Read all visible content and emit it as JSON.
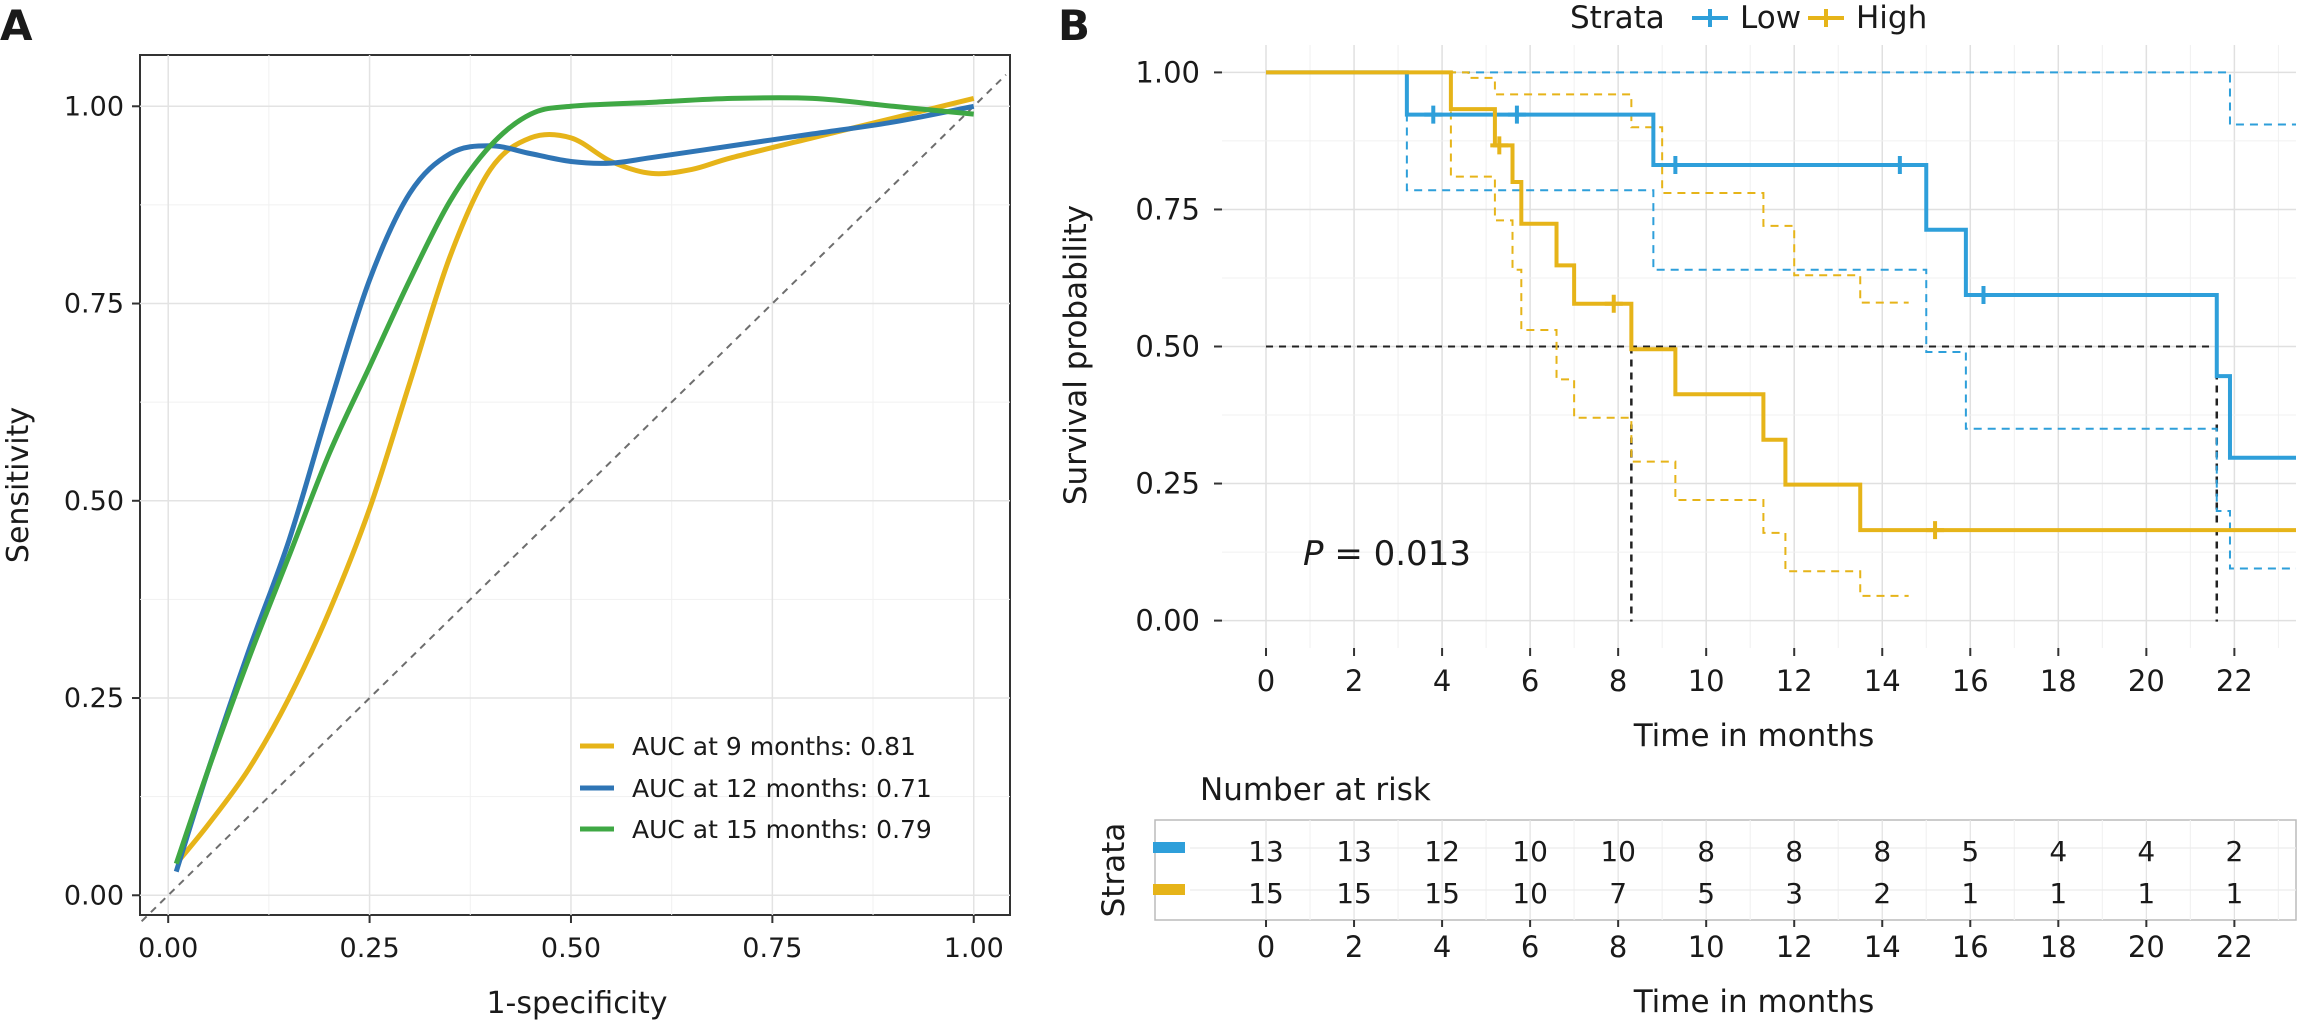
{
  "panel_a": {
    "letter": "A"
  },
  "panel_b": {
    "letter": "B"
  },
  "chart_data": [
    {
      "type": "line",
      "xlabel": "1-specificity",
      "ylabel": "Sensitivity",
      "xlim": [
        -0.035,
        1.045
      ],
      "ylim": [
        -0.025,
        1.065
      ],
      "xticks": [
        "0.00",
        "0.25",
        "0.50",
        "0.75",
        "1.00"
      ],
      "yticks": [
        "0.00",
        "0.25",
        "0.50",
        "0.75",
        "1.00"
      ],
      "grid": true,
      "legend_position": "bottom-right",
      "reference_line": {
        "x": [
          0,
          1
        ],
        "y": [
          0,
          1
        ],
        "style": "dashed",
        "color": "#6e6e6e"
      },
      "series": [
        {
          "name": "AUC at 9 months: 0.81",
          "color": "#e6b419",
          "x": [
            0.01,
            0.05,
            0.1,
            0.15,
            0.2,
            0.25,
            0.3,
            0.35,
            0.4,
            0.45,
            0.5,
            0.55,
            0.6,
            0.65,
            0.7,
            0.8,
            0.9,
            1.0
          ],
          "y": [
            0.04,
            0.09,
            0.16,
            0.25,
            0.36,
            0.49,
            0.65,
            0.81,
            0.92,
            0.96,
            0.96,
            0.93,
            0.915,
            0.92,
            0.935,
            0.96,
            0.985,
            1.01
          ]
        },
        {
          "name": "AUC at 12 months: 0.71",
          "color": "#2f75b5",
          "x": [
            0.01,
            0.05,
            0.1,
            0.15,
            0.2,
            0.25,
            0.3,
            0.35,
            0.4,
            0.45,
            0.5,
            0.55,
            0.6,
            0.7,
            0.8,
            0.9,
            1.0
          ],
          "y": [
            0.03,
            0.16,
            0.31,
            0.45,
            0.62,
            0.78,
            0.89,
            0.94,
            0.95,
            0.94,
            0.93,
            0.928,
            0.935,
            0.95,
            0.965,
            0.98,
            1.0
          ]
        },
        {
          "name": "AUC at 15 months: 0.79",
          "color": "#3fa844",
          "x": [
            0.01,
            0.05,
            0.1,
            0.15,
            0.2,
            0.25,
            0.3,
            0.35,
            0.4,
            0.45,
            0.5,
            0.6,
            0.7,
            0.8,
            0.9,
            1.0
          ],
          "y": [
            0.04,
            0.16,
            0.3,
            0.43,
            0.56,
            0.67,
            0.78,
            0.88,
            0.95,
            0.99,
            1.0,
            1.005,
            1.01,
            1.01,
            1.0,
            0.99
          ]
        }
      ]
    },
    {
      "type": "line",
      "xlabel": "Time in months",
      "ylabel": "Survival probability",
      "xlim": [
        -1,
        23.4
      ],
      "ylim": [
        -0.05,
        1.05
      ],
      "xticks": [
        "0",
        "2",
        "4",
        "6",
        "8",
        "10",
        "12",
        "14",
        "16",
        "18",
        "20",
        "22"
      ],
      "yticks": [
        "0.00",
        "0.25",
        "0.50",
        "0.75",
        "1.00"
      ],
      "grid": true,
      "legend_title": "Strata",
      "legend_position": "top",
      "annotation": {
        "label": "P",
        "text": " = 0.013"
      },
      "median_survival_months": {
        "Low": 21.6,
        "High": 8.3
      },
      "series": [
        {
          "name": "Low",
          "color": "#2e9fda",
          "step_x": [
            0,
            3.2,
            8.8,
            15.0,
            15.9,
            21.6,
            21.9,
            23.4
          ],
          "step_y": [
            1.0,
            0.923,
            0.831,
            0.713,
            0.594,
            0.446,
            0.297,
            0.297
          ],
          "censor_x": [
            3.8,
            5.7,
            9.3,
            14.4,
            16.3
          ],
          "censor_y": [
            0.923,
            0.923,
            0.831,
            0.831,
            0.594
          ],
          "ci_upper_x": [
            0,
            21.6,
            21.9,
            23.4
          ],
          "ci_upper_y": [
            1.0,
            1.0,
            0.905,
            0.905
          ],
          "ci_lower_x": [
            0,
            3.2,
            8.8,
            15.0,
            15.9,
            21.6,
            21.9,
            23.4
          ],
          "ci_lower_y": [
            1.0,
            0.785,
            0.64,
            0.49,
            0.35,
            0.2,
            0.095,
            0.095
          ]
        },
        {
          "name": "High",
          "color": "#e6b419",
          "step_x": [
            0,
            4.2,
            5.2,
            5.6,
            5.8,
            6.6,
            7.0,
            8.3,
            9.3,
            11.3,
            11.8,
            13.5,
            23.4
          ],
          "step_y": [
            1.0,
            0.933,
            0.867,
            0.8,
            0.724,
            0.648,
            0.578,
            0.495,
            0.413,
            0.33,
            0.248,
            0.165,
            0.165
          ],
          "censor_x": [
            5.3,
            7.9,
            15.2
          ],
          "censor_y": [
            0.867,
            0.578,
            0.165
          ],
          "ci_upper_x": [
            0,
            4.6,
            5.2,
            8.3,
            9.0,
            11.3,
            12.0,
            13.5,
            14.6
          ],
          "ci_upper_y": [
            1.0,
            0.99,
            0.96,
            0.9,
            0.78,
            0.72,
            0.63,
            0.58,
            0.58
          ],
          "ci_lower_x": [
            0,
            4.2,
            5.2,
            5.6,
            5.8,
            6.6,
            7.0,
            8.3,
            9.3,
            11.3,
            11.8,
            13.5,
            14.6
          ],
          "ci_lower_y": [
            1.0,
            0.81,
            0.73,
            0.64,
            0.53,
            0.44,
            0.37,
            0.29,
            0.22,
            0.16,
            0.09,
            0.045,
            0.045
          ]
        }
      ]
    },
    {
      "type": "table",
      "title": "Number at risk",
      "xlabel": "Time in months",
      "ylabel": "Strata",
      "times": [
        "0",
        "2",
        "4",
        "6",
        "8",
        "10",
        "12",
        "14",
        "16",
        "18",
        "20",
        "22"
      ],
      "rows": [
        {
          "strata": "Low",
          "color": "#2e9fda",
          "values": [
            "13",
            "13",
            "12",
            "10",
            "10",
            "8",
            "8",
            "8",
            "5",
            "4",
            "4",
            "2"
          ]
        },
        {
          "strata": "High",
          "color": "#e6b419",
          "values": [
            "15",
            "15",
            "15",
            "10",
            "7",
            "5",
            "3",
            "2",
            "1",
            "1",
            "1",
            "1"
          ]
        }
      ]
    }
  ]
}
